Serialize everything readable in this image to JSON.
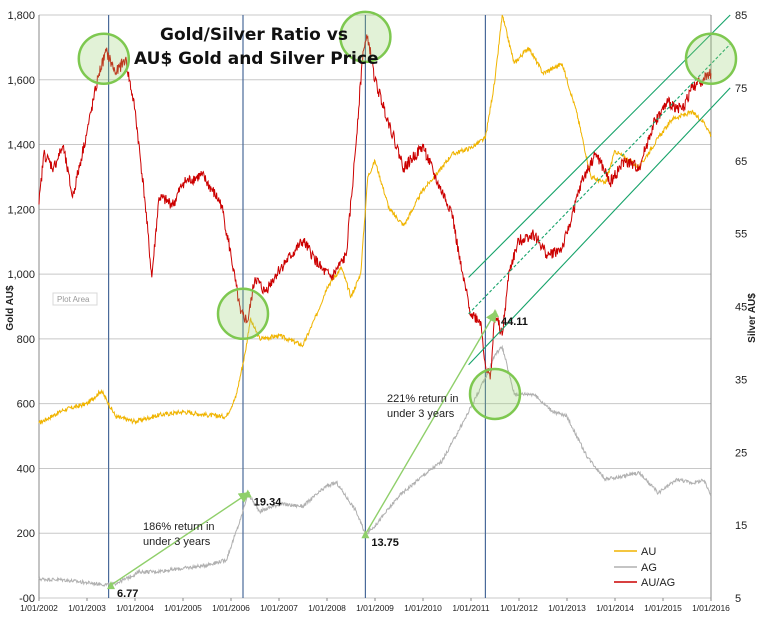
{
  "chart_data": {
    "type": "line",
    "title_line1": "Gold/Silver Ratio vs",
    "title_line2": "AU$ Gold and Silver Price",
    "ylabel_left": "Gold AU$",
    "ylabel_right": "Silver AU$",
    "plot_area_label": "Plot Area",
    "ylim_left": [
      0,
      1800
    ],
    "ylim_right": [
      5,
      85
    ],
    "yticks_left": [
      "1,800",
      "1,600",
      "1,400",
      "1,200",
      "1,000",
      "800",
      "600",
      "400",
      "200",
      "-00"
    ],
    "yticks_left_values": [
      1800,
      1600,
      1400,
      1200,
      1000,
      800,
      600,
      400,
      200,
      0
    ],
    "yticks_right": [
      "85",
      "75",
      "65",
      "55",
      "45",
      "35",
      "25",
      "15",
      "5"
    ],
    "yticks_right_values": [
      85,
      75,
      65,
      55,
      45,
      35,
      25,
      15,
      5
    ],
    "x_tick_labels": [
      "1/01/2002",
      "1/01/2003",
      "1/01/2004",
      "1/01/2005",
      "1/01/2006",
      "1/01/2007",
      "1/01/2008",
      "1/01/2009",
      "1/01/2010",
      "1/01/2011",
      "1/01/2012",
      "1/01/2013",
      "1/01/2014",
      "1/01/2015",
      "1/01/2016"
    ],
    "xlim_years": [
      2002,
      2016
    ],
    "grid": "horizontal",
    "legend_position": "bottom-right",
    "series": [
      {
        "name": "AU",
        "axis": "left",
        "color": "#f0b400",
        "points": [
          [
            2002.0,
            540
          ],
          [
            2002.5,
            580
          ],
          [
            2003.0,
            600
          ],
          [
            2003.3,
            640
          ],
          [
            2003.6,
            560
          ],
          [
            2004.0,
            545
          ],
          [
            2004.5,
            565
          ],
          [
            2005.0,
            575
          ],
          [
            2005.5,
            565
          ],
          [
            2005.9,
            560
          ],
          [
            2006.1,
            620
          ],
          [
            2006.3,
            760
          ],
          [
            2006.4,
            860
          ],
          [
            2006.6,
            800
          ],
          [
            2007.0,
            810
          ],
          [
            2007.5,
            780
          ],
          [
            2007.8,
            880
          ],
          [
            2008.0,
            960
          ],
          [
            2008.3,
            1020
          ],
          [
            2008.5,
            930
          ],
          [
            2008.7,
            1000
          ],
          [
            2008.85,
            1300
          ],
          [
            2009.0,
            1350
          ],
          [
            2009.3,
            1200
          ],
          [
            2009.6,
            1150
          ],
          [
            2010.0,
            1260
          ],
          [
            2010.4,
            1330
          ],
          [
            2010.6,
            1370
          ],
          [
            2010.8,
            1380
          ],
          [
            2011.0,
            1390
          ],
          [
            2011.3,
            1420
          ],
          [
            2011.5,
            1600
          ],
          [
            2011.65,
            1800
          ],
          [
            2011.9,
            1650
          ],
          [
            2012.2,
            1700
          ],
          [
            2012.5,
            1620
          ],
          [
            2012.9,
            1650
          ],
          [
            2013.2,
            1500
          ],
          [
            2013.5,
            1300
          ],
          [
            2013.8,
            1280
          ],
          [
            2014.0,
            1380
          ],
          [
            2014.5,
            1330
          ],
          [
            2014.9,
            1420
          ],
          [
            2015.2,
            1480
          ],
          [
            2015.6,
            1500
          ],
          [
            2015.85,
            1470
          ],
          [
            2016.0,
            1430
          ]
        ]
      },
      {
        "name": "AG",
        "axis": "right",
        "color": "#b0b0b0",
        "points": [
          [
            2002.0,
            7.6
          ],
          [
            2002.5,
            7.5
          ],
          [
            2003.0,
            7.1
          ],
          [
            2003.3,
            6.9
          ],
          [
            2003.5,
            6.77
          ],
          [
            2003.8,
            7.6
          ],
          [
            2004.1,
            8.6
          ],
          [
            2004.4,
            8.6
          ],
          [
            2004.8,
            8.9
          ],
          [
            2005.4,
            9.4
          ],
          [
            2005.9,
            10.2
          ],
          [
            2006.2,
            15.8
          ],
          [
            2006.35,
            19.34
          ],
          [
            2006.6,
            16.9
          ],
          [
            2007.0,
            17.9
          ],
          [
            2007.5,
            17.6
          ],
          [
            2008.0,
            20.4
          ],
          [
            2008.2,
            20.8
          ],
          [
            2008.6,
            17.0
          ],
          [
            2008.8,
            13.75
          ],
          [
            2009.0,
            14.9
          ],
          [
            2009.5,
            19.0
          ],
          [
            2010.0,
            21.8
          ],
          [
            2010.4,
            23.8
          ],
          [
            2010.9,
            29.9
          ],
          [
            2011.3,
            35.2
          ],
          [
            2011.5,
            38.4
          ],
          [
            2011.65,
            39.5
          ],
          [
            2011.9,
            33.0
          ],
          [
            2012.3,
            33.0
          ],
          [
            2012.7,
            30.6
          ],
          [
            2013.0,
            29.9
          ],
          [
            2013.4,
            24.6
          ],
          [
            2013.8,
            21.3
          ],
          [
            2014.1,
            21.6
          ],
          [
            2014.5,
            22.2
          ],
          [
            2014.9,
            19.4
          ],
          [
            2015.3,
            21.3
          ],
          [
            2015.6,
            20.8
          ],
          [
            2015.85,
            21.1
          ],
          [
            2016.0,
            19.2
          ]
        ]
      },
      {
        "name": "AU/AG",
        "axis": "right",
        "color": "#cc0000",
        "points": [
          [
            2002.0,
            59
          ],
          [
            2002.1,
            66
          ],
          [
            2002.3,
            64
          ],
          [
            2002.5,
            67
          ],
          [
            2002.7,
            60
          ],
          [
            2003.0,
            69
          ],
          [
            2003.25,
            77
          ],
          [
            2003.4,
            80
          ],
          [
            2003.6,
            77
          ],
          [
            2003.8,
            79
          ],
          [
            2004.0,
            72
          ],
          [
            2004.2,
            60
          ],
          [
            2004.35,
            49
          ],
          [
            2004.5,
            60
          ],
          [
            2004.8,
            59
          ],
          [
            2005.0,
            62
          ],
          [
            2005.4,
            63
          ],
          [
            2005.8,
            59
          ],
          [
            2006.0,
            52
          ],
          [
            2006.2,
            44
          ],
          [
            2006.35,
            43
          ],
          [
            2006.5,
            49
          ],
          [
            2006.7,
            47
          ],
          [
            2007.0,
            50
          ],
          [
            2007.5,
            54
          ],
          [
            2007.9,
            50
          ],
          [
            2008.1,
            49
          ],
          [
            2008.4,
            52
          ],
          [
            2008.55,
            63
          ],
          [
            2008.75,
            80
          ],
          [
            2008.85,
            82
          ],
          [
            2009.0,
            76
          ],
          [
            2009.3,
            70
          ],
          [
            2009.6,
            64
          ],
          [
            2010.0,
            67
          ],
          [
            2010.3,
            62
          ],
          [
            2010.6,
            58
          ],
          [
            2010.8,
            50
          ],
          [
            2011.0,
            44
          ],
          [
            2011.2,
            43
          ],
          [
            2011.3,
            37
          ],
          [
            2011.4,
            35
          ],
          [
            2011.5,
            44.11
          ],
          [
            2011.65,
            41
          ],
          [
            2011.8,
            50
          ],
          [
            2012.0,
            54
          ],
          [
            2012.3,
            55
          ],
          [
            2012.6,
            52
          ],
          [
            2012.9,
            53
          ],
          [
            2013.0,
            55
          ],
          [
            2013.3,
            62
          ],
          [
            2013.6,
            66
          ],
          [
            2013.9,
            62
          ],
          [
            2014.2,
            65
          ],
          [
            2014.5,
            64
          ],
          [
            2014.8,
            70
          ],
          [
            2015.1,
            73
          ],
          [
            2015.4,
            72
          ],
          [
            2015.6,
            75
          ],
          [
            2015.8,
            76
          ],
          [
            2016.0,
            77
          ]
        ]
      }
    ],
    "callout_values": [
      {
        "label": "6.77",
        "year": 2003.5,
        "value": 6.77
      },
      {
        "label": "19.34",
        "year": 2006.35,
        "value": 19.34
      },
      {
        "label": "13.75",
        "year": 2008.8,
        "value": 13.75
      },
      {
        "label": "44.11",
        "year": 2011.5,
        "value": 44.11
      }
    ],
    "annotations": [
      {
        "line1": "186% return in",
        "line2": "under 3 years"
      },
      {
        "line1": "221% return in",
        "line2": "under 3 years"
      }
    ],
    "vertical_markers_years": [
      2003.45,
      2006.25,
      2008.8,
      2011.3
    ],
    "highlight_circles": [
      {
        "year": 2003.35,
        "value": 79
      },
      {
        "year": 2006.25,
        "value": 44
      },
      {
        "year": 2008.8,
        "value": 82
      },
      {
        "year": 2011.5,
        "value": 33
      },
      {
        "year": 2016.0,
        "value": 79
      }
    ],
    "trend_channel": {
      "x": [
        2010.95,
        2016.4
      ],
      "upper": [
        49,
        85
      ],
      "middle": [
        44,
        81
      ],
      "lower": [
        37,
        75
      ],
      "color": "#16a36a"
    },
    "legend": [
      {
        "label": "AU",
        "color": "#f0b400"
      },
      {
        "label": "AG",
        "color": "#b0b0b0"
      },
      {
        "label": "AU/AG",
        "color": "#cc0000"
      }
    ],
    "colors": {
      "gridline": "#c8c8c8",
      "marker_line": "#4a6a9a",
      "circle": "#7ec850",
      "arrow": "#8fcf6a"
    }
  }
}
